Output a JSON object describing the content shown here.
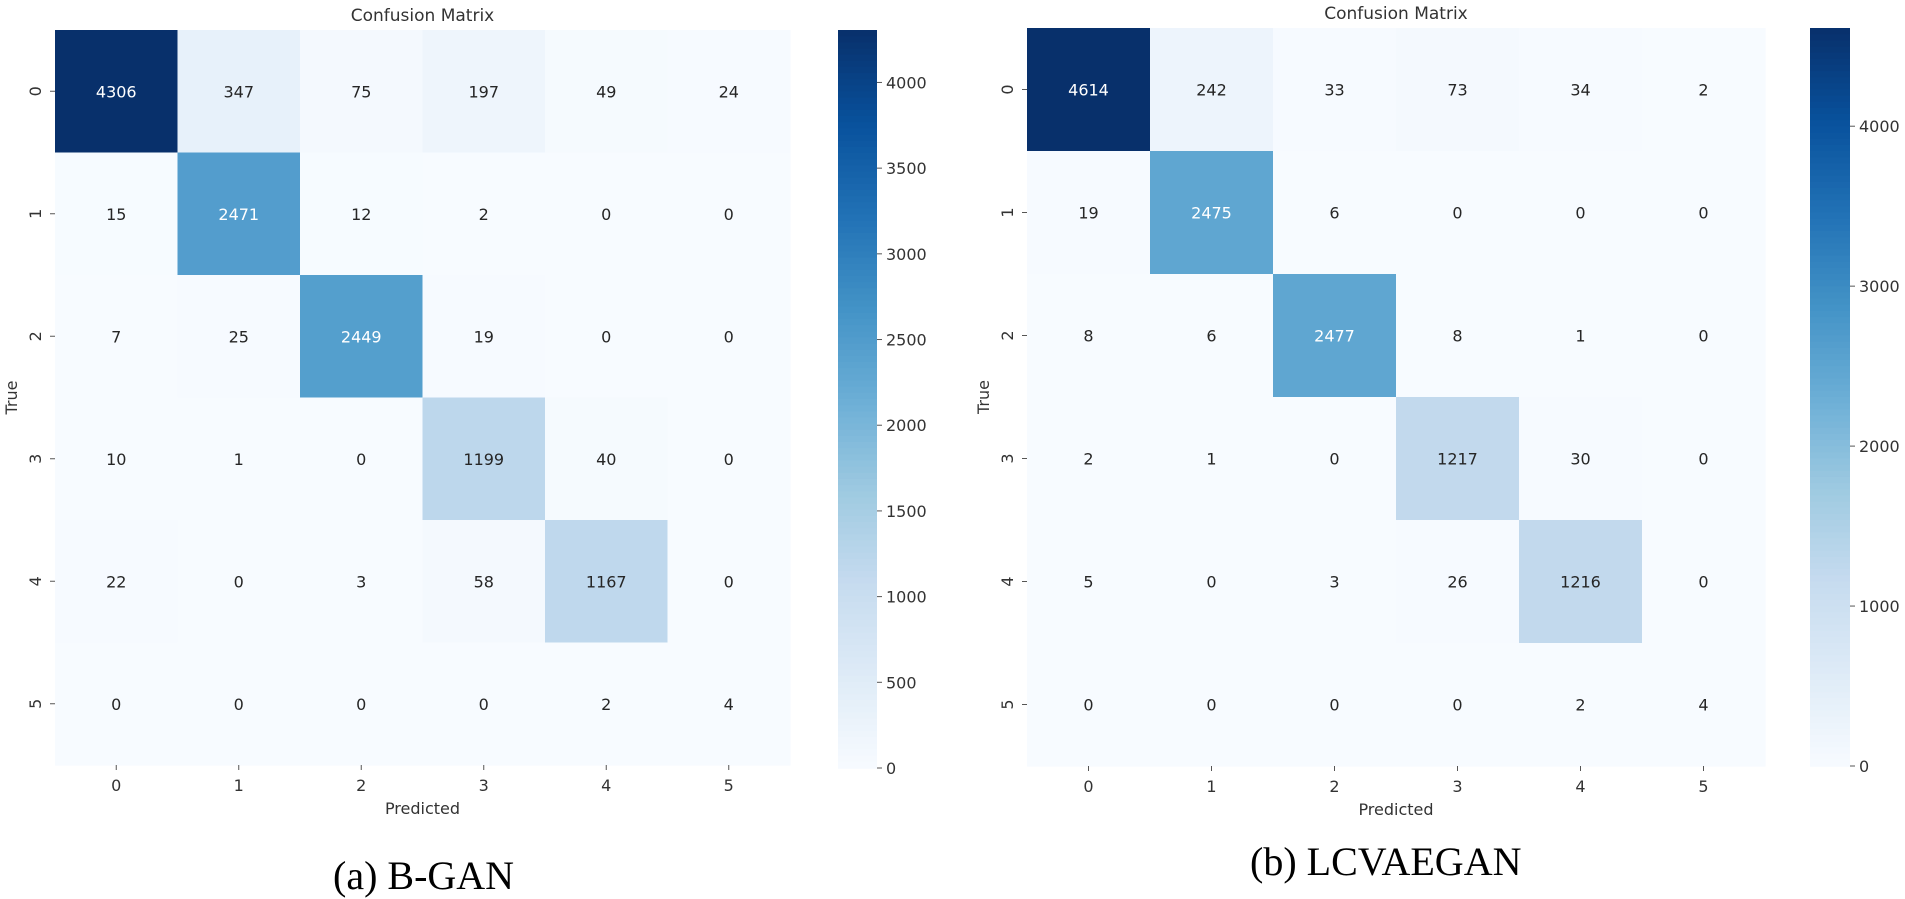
{
  "chart_data": [
    {
      "type": "heatmap",
      "title": "Confusion Matrix",
      "xlabel": "Predicted",
      "ylabel": "True",
      "x_ticks": [
        "0",
        "1",
        "2",
        "3",
        "4",
        "5"
      ],
      "y_ticks": [
        "0",
        "1",
        "2",
        "3",
        "4",
        "5"
      ],
      "matrix": [
        [
          4306,
          347,
          75,
          197,
          49,
          24
        ],
        [
          15,
          2471,
          12,
          2,
          0,
          0
        ],
        [
          7,
          25,
          2449,
          19,
          0,
          0
        ],
        [
          10,
          1,
          0,
          1199,
          40,
          0
        ],
        [
          22,
          0,
          3,
          58,
          1167,
          0
        ],
        [
          0,
          0,
          0,
          0,
          2,
          4
        ]
      ],
      "vmin": 0,
      "vmax": 4306,
      "colorbar_ticks": [
        0,
        500,
        1000,
        1500,
        2000,
        2500,
        3000,
        3500,
        4000
      ],
      "colormap": "Blues",
      "caption": "(a) B-GAN"
    },
    {
      "type": "heatmap",
      "title": "Confusion Matrix",
      "xlabel": "Predicted",
      "ylabel": "True",
      "x_ticks": [
        "0",
        "1",
        "2",
        "3",
        "4",
        "5"
      ],
      "y_ticks": [
        "0",
        "1",
        "2",
        "3",
        "4",
        "5"
      ],
      "matrix": [
        [
          4614,
          242,
          33,
          73,
          34,
          2
        ],
        [
          19,
          2475,
          6,
          0,
          0,
          0
        ],
        [
          8,
          6,
          2477,
          8,
          1,
          0
        ],
        [
          2,
          1,
          0,
          1217,
          30,
          0
        ],
        [
          5,
          0,
          3,
          26,
          1216,
          0
        ],
        [
          0,
          0,
          0,
          0,
          2,
          4
        ]
      ],
      "vmin": 0,
      "vmax": 4614,
      "colorbar_ticks": [
        0,
        1000,
        2000,
        3000,
        4000
      ],
      "colormap": "Blues",
      "caption": "(b) LCVAEGAN"
    }
  ]
}
